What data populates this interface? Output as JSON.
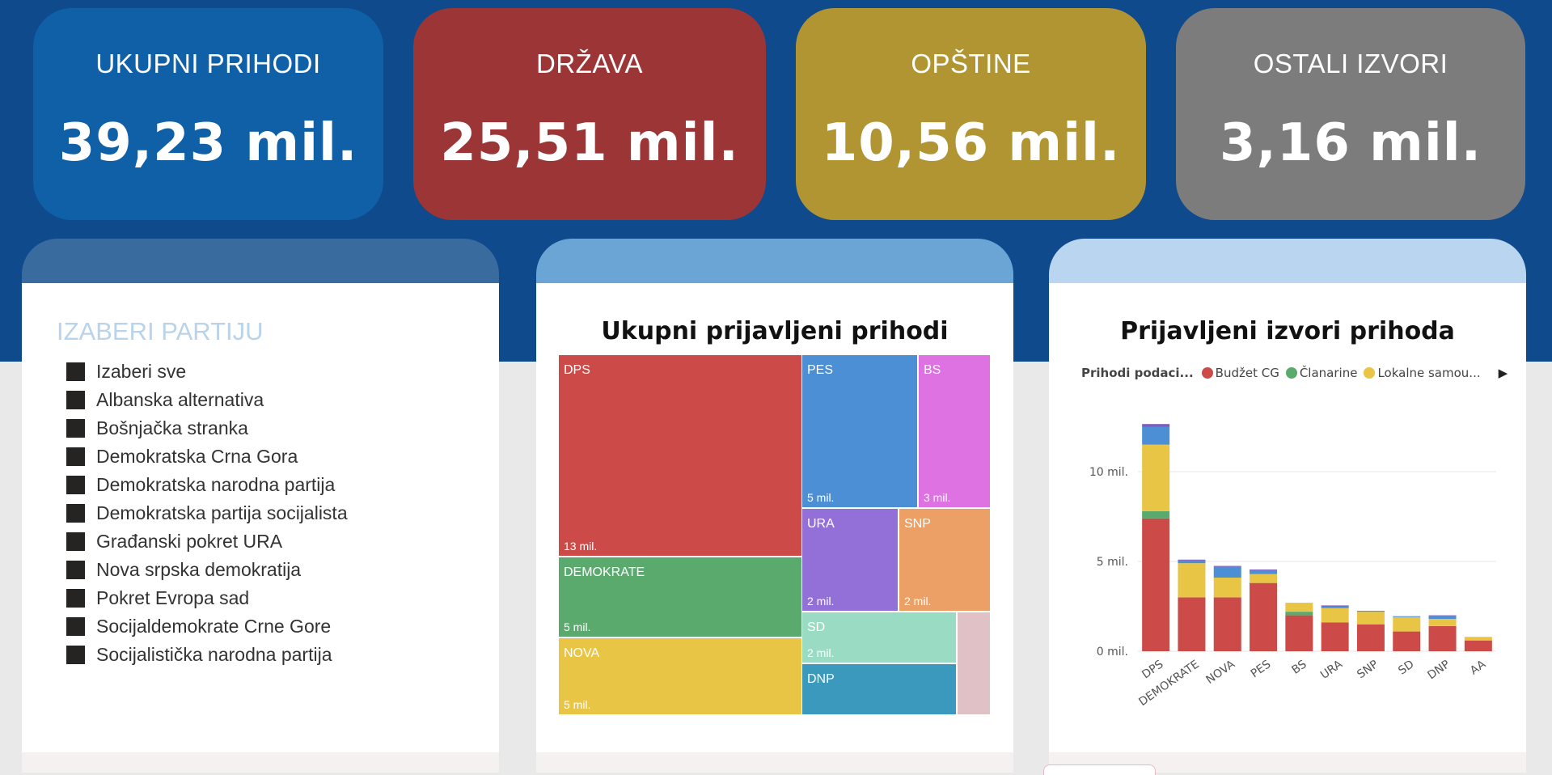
{
  "kpis": [
    {
      "label": "UKUPNI PRIHODI",
      "value": "39,23 mil.",
      "color": "#1060a8"
    },
    {
      "label": "DRŽAVA",
      "value": "25,51 mil.",
      "color": "#9b3536"
    },
    {
      "label": "OPŠTINE",
      "value": "10,56 mil.",
      "color": "#b19533"
    },
    {
      "label": "OSTALI IZVORI",
      "value": "3,16 mil.",
      "color": "#7c7c7c"
    }
  ],
  "panel_colors": [
    "#396b9f",
    "#6aa5d5",
    "#bad5f0"
  ],
  "slicer": {
    "title": "IZABERI PARTIJU",
    "items": [
      "Izaberi sve",
      "Albanska alternativa",
      "Bošnjačka stranka",
      "Demokratska Crna Gora",
      "Demokratska narodna partija",
      "Demokratska partija socijalista",
      "Građanski pokret URA",
      "Nova srpska demokratija",
      "Pokret Evropa sad",
      "Socijaldemokrate Crne Gore",
      "Socijalistička narodna partija"
    ]
  },
  "chart_data": [
    {
      "type": "treemap",
      "title": "Ukupni prijavljeni prihodi",
      "items": [
        {
          "name": "DPS",
          "label": "DPS",
          "value": 12.6,
          "value_label": "13 mil.",
          "color": "#cc4b49"
        },
        {
          "name": "DEMOKRATE",
          "label": "DEMOKRATE",
          "value": 5.1,
          "value_label": "5 mil.",
          "color": "#5aaa6e"
        },
        {
          "name": "NOVA",
          "label": "NOVA",
          "value": 4.8,
          "value_label": "5 mil.",
          "color": "#e9c545"
        },
        {
          "name": "PES",
          "label": "PES",
          "value": 4.5,
          "value_label": "5 mil.",
          "color": "#4c8fd4"
        },
        {
          "name": "BS",
          "label": "BS",
          "value": 2.8,
          "value_label": "3 mil.",
          "color": "#df72e2"
        },
        {
          "name": "URA",
          "label": "URA",
          "value": 2.5,
          "value_label": "2 mil.",
          "color": "#9370d7"
        },
        {
          "name": "SNP",
          "label": "SNP",
          "value": 2.3,
          "value_label": "2 mil.",
          "color": "#eca065"
        },
        {
          "name": "SD",
          "label": "SD",
          "value": 2.1,
          "value_label": "2 mil.",
          "color": "#9adcc3"
        },
        {
          "name": "DNP",
          "label": "DNP",
          "value": 2.0,
          "value_label": "",
          "color": "#3a99bd"
        },
        {
          "name": "AA",
          "label": "",
          "value": 0.8,
          "value_label": "",
          "color": "#e0c1c5"
        }
      ]
    },
    {
      "type": "bar",
      "stacked": true,
      "title": "Prijavljeni izvori prihoda",
      "legend_title": "Prihodi podaci...",
      "legend_items": [
        "Budžet CG",
        "Članarine",
        "Lokalne samou..."
      ],
      "categories": [
        "DPS",
        "DEMOKRATE",
        "NOVA",
        "PES",
        "BS",
        "URA",
        "SNP",
        "SD",
        "DNP",
        "AA"
      ],
      "series": [
        {
          "name": "Budžet CG",
          "color": "#cc4b49",
          "values": [
            7.4,
            3.0,
            3.0,
            3.8,
            2.0,
            1.6,
            1.5,
            1.1,
            1.4,
            0.6
          ]
        },
        {
          "name": "Članarine",
          "color": "#5aaa6e",
          "values": [
            0.4,
            0.0,
            0.0,
            0.0,
            0.2,
            0.0,
            0.0,
            0.0,
            0.0,
            0.0
          ]
        },
        {
          "name": "Lokalne samou...",
          "color": "#e9c545",
          "values": [
            3.7,
            1.9,
            1.1,
            0.5,
            0.5,
            0.8,
            0.7,
            0.8,
            0.4,
            0.2
          ]
        },
        {
          "color": "#4c8fd4",
          "values": [
            1.0,
            0.15,
            0.6,
            0.2,
            0.0,
            0.1,
            0.05,
            0.05,
            0.15,
            0.0
          ]
        },
        {
          "color": "#7b5fc0",
          "values": [
            0.15,
            0.05,
            0.05,
            0.05,
            0.0,
            0.05,
            0.0,
            0.0,
            0.05,
            0.0
          ]
        }
      ],
      "y_ticks": [
        0,
        5,
        10
      ],
      "y_tick_labels": [
        "0 mil.",
        "5 mil.",
        "10 mil."
      ],
      "ylim": [
        0,
        13
      ],
      "grid": true
    }
  ]
}
